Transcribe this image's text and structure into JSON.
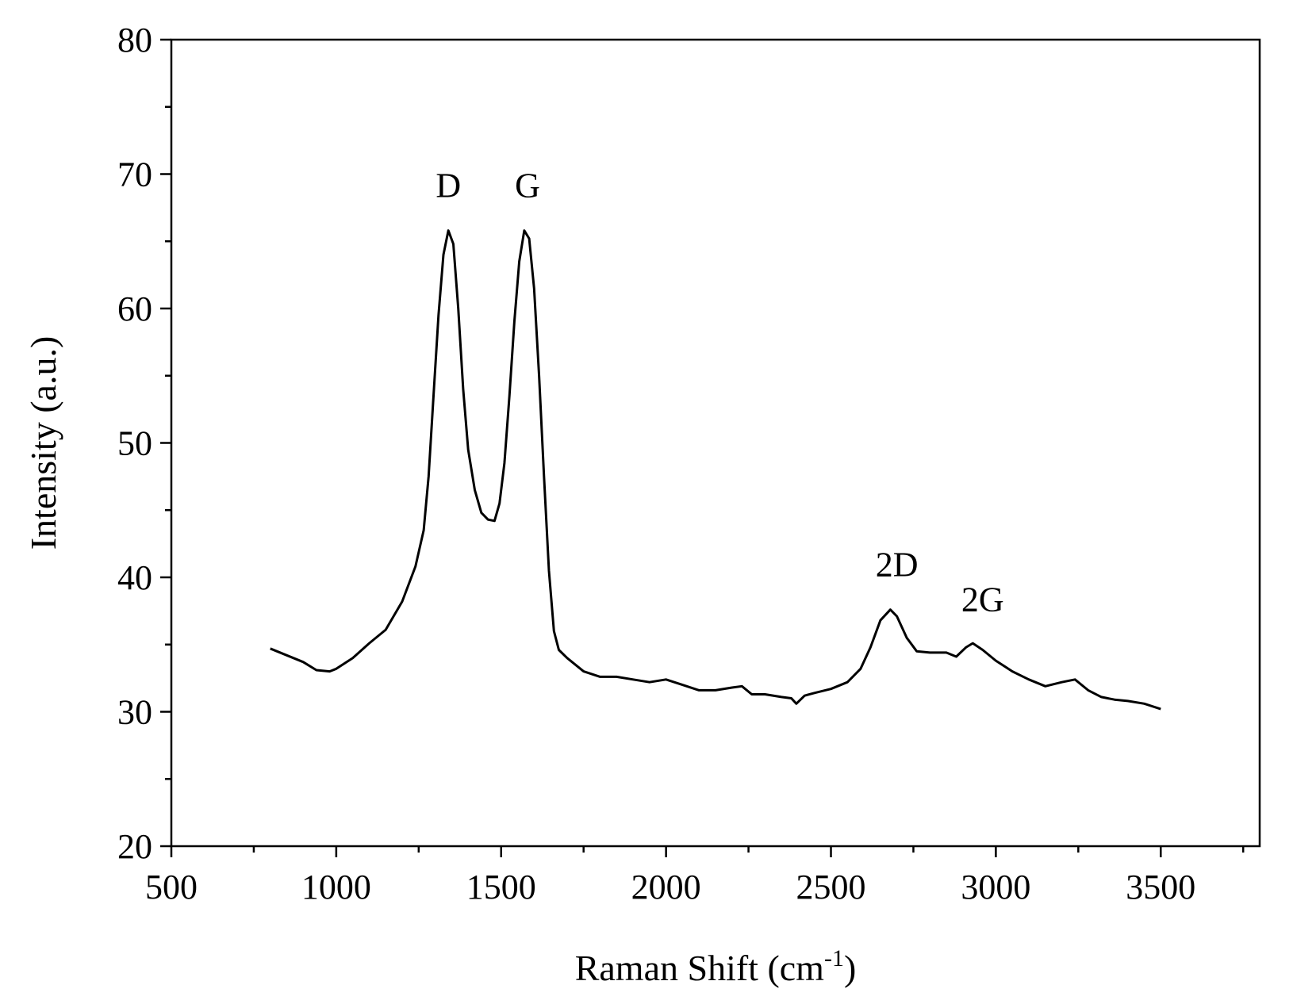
{
  "chart_data": {
    "type": "line",
    "xlabel": "Raman Shift (cm",
    "xlabel_sup": "-1",
    "xlabel_end": ")",
    "ylabel": "Intensity (a.u.)",
    "xlim": [
      500,
      3800
    ],
    "ylim": [
      20,
      80
    ],
    "xticks": [
      500,
      1000,
      1500,
      2000,
      2500,
      3000,
      3500
    ],
    "yticks": [
      20,
      30,
      40,
      50,
      60,
      70,
      80
    ],
    "grid": false,
    "line_color": "#000000",
    "annotations": [
      {
        "text": "D",
        "x": 1340,
        "y": 68.3
      },
      {
        "text": "G",
        "x": 1580,
        "y": 68.3
      },
      {
        "text": "2D",
        "x": 2700,
        "y": 40.1
      },
      {
        "text": "2G",
        "x": 2960,
        "y": 37.5
      }
    ],
    "series": [
      {
        "points": [
          [
            800,
            34.7
          ],
          [
            850,
            34.2
          ],
          [
            900,
            33.7
          ],
          [
            940,
            33.1
          ],
          [
            980,
            33.0
          ],
          [
            1000,
            33.2
          ],
          [
            1050,
            34.0
          ],
          [
            1100,
            35.1
          ],
          [
            1150,
            36.1
          ],
          [
            1200,
            38.2
          ],
          [
            1240,
            40.8
          ],
          [
            1265,
            43.5
          ],
          [
            1280,
            47.5
          ],
          [
            1295,
            53.5
          ],
          [
            1310,
            59.5
          ],
          [
            1325,
            64.0
          ],
          [
            1340,
            65.8
          ],
          [
            1355,
            64.8
          ],
          [
            1370,
            60.0
          ],
          [
            1385,
            54.0
          ],
          [
            1400,
            49.5
          ],
          [
            1420,
            46.5
          ],
          [
            1440,
            44.8
          ],
          [
            1460,
            44.3
          ],
          [
            1480,
            44.2
          ],
          [
            1495,
            45.5
          ],
          [
            1510,
            48.5
          ],
          [
            1525,
            53.5
          ],
          [
            1540,
            59.0
          ],
          [
            1555,
            63.5
          ],
          [
            1570,
            65.8
          ],
          [
            1585,
            65.2
          ],
          [
            1600,
            61.5
          ],
          [
            1615,
            55.0
          ],
          [
            1630,
            47.5
          ],
          [
            1645,
            40.5
          ],
          [
            1660,
            36.0
          ],
          [
            1675,
            34.6
          ],
          [
            1700,
            34.0
          ],
          [
            1750,
            33.0
          ],
          [
            1800,
            32.6
          ],
          [
            1850,
            32.6
          ],
          [
            1900,
            32.4
          ],
          [
            1950,
            32.2
          ],
          [
            2000,
            32.4
          ],
          [
            2050,
            32.0
          ],
          [
            2100,
            31.6
          ],
          [
            2150,
            31.6
          ],
          [
            2200,
            31.8
          ],
          [
            2230,
            31.9
          ],
          [
            2260,
            31.3
          ],
          [
            2300,
            31.3
          ],
          [
            2350,
            31.1
          ],
          [
            2380,
            31.0
          ],
          [
            2395,
            30.6
          ],
          [
            2420,
            31.2
          ],
          [
            2450,
            31.4
          ],
          [
            2500,
            31.7
          ],
          [
            2550,
            32.2
          ],
          [
            2590,
            33.2
          ],
          [
            2620,
            34.8
          ],
          [
            2650,
            36.8
          ],
          [
            2680,
            37.6
          ],
          [
            2700,
            37.1
          ],
          [
            2730,
            35.5
          ],
          [
            2760,
            34.5
          ],
          [
            2800,
            34.4
          ],
          [
            2850,
            34.4
          ],
          [
            2880,
            34.1
          ],
          [
            2910,
            34.8
          ],
          [
            2930,
            35.1
          ],
          [
            2960,
            34.6
          ],
          [
            3000,
            33.8
          ],
          [
            3050,
            33.0
          ],
          [
            3100,
            32.4
          ],
          [
            3150,
            31.9
          ],
          [
            3200,
            32.2
          ],
          [
            3240,
            32.4
          ],
          [
            3280,
            31.6
          ],
          [
            3320,
            31.1
          ],
          [
            3360,
            30.9
          ],
          [
            3400,
            30.8
          ],
          [
            3450,
            30.6
          ],
          [
            3500,
            30.2
          ]
        ]
      }
    ]
  }
}
